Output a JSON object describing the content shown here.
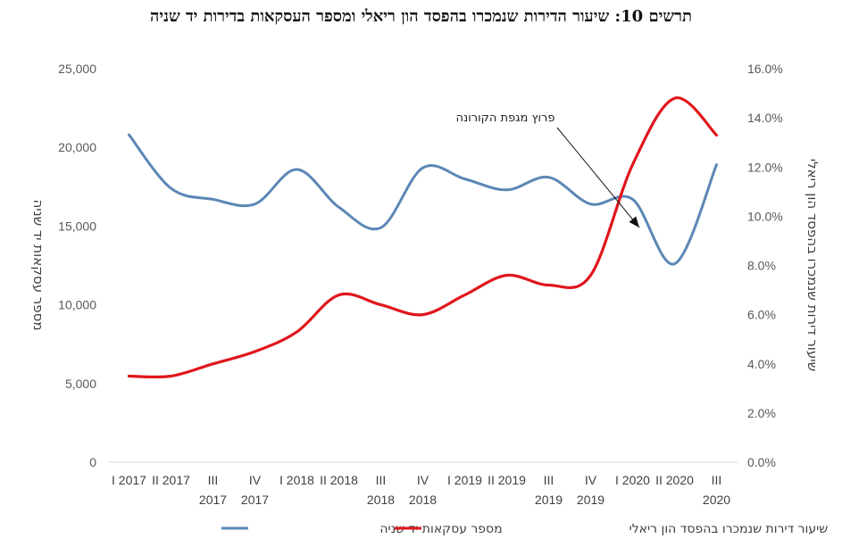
{
  "chart_data": {
    "type": "line",
    "title": "תרשים 10: שיעור הדירות שנמכרו בהפסד הון ריאלי ומספר העסקאות בדירות יד שניה",
    "categories": [
      [
        "I 2017"
      ],
      [
        "II 2017"
      ],
      [
        "III",
        "2017"
      ],
      [
        "IV",
        "2017"
      ],
      [
        "I 2018"
      ],
      [
        "II 2018"
      ],
      [
        "III",
        "2018"
      ],
      [
        "IV",
        "2018"
      ],
      [
        "I 2019"
      ],
      [
        "II 2019"
      ],
      [
        "III",
        "2019"
      ],
      [
        "IV",
        "2019"
      ],
      [
        "I 2020"
      ],
      [
        "II 2020"
      ],
      [
        "III",
        "2020"
      ]
    ],
    "y_left": {
      "label": "מספר עסקאות יד שניה",
      "min": 0,
      "max": 25000,
      "step": 5000,
      "ticks": [
        "0",
        "5,000",
        "10,000",
        "15,000",
        "20,000",
        "25,000"
      ]
    },
    "y_right": {
      "label": "שיעור דירות שנמכרו בהפסד הון ריאלי",
      "min": 0,
      "max": 16,
      "step": 2,
      "ticks": [
        "0.0%",
        "2.0%",
        "4.0%",
        "6.0%",
        "8.0%",
        "10.0%",
        "12.0%",
        "14.0%",
        "16.0%"
      ]
    },
    "series": [
      {
        "name": "מספר עסקאות יד שניה",
        "axis": "left",
        "color": "#5b87b5",
        "values": [
          20800,
          17400,
          16700,
          16400,
          18600,
          16200,
          14900,
          18700,
          18000,
          17300,
          18100,
          16400,
          16700,
          12600,
          18900
        ]
      },
      {
        "name": "שיעור דירות שנמכרו בהפסד הון ריאלי",
        "axis": "right",
        "color": "#e0161c",
        "values": [
          3.5,
          3.5,
          4.0,
          4.5,
          5.3,
          6.8,
          6.4,
          6.0,
          6.8,
          7.6,
          7.2,
          7.6,
          12.1,
          14.8,
          13.3
        ]
      }
    ],
    "annotation": {
      "text": "פרוץ מגפת הקורונה"
    },
    "legend": "bottom",
    "grid": false
  }
}
